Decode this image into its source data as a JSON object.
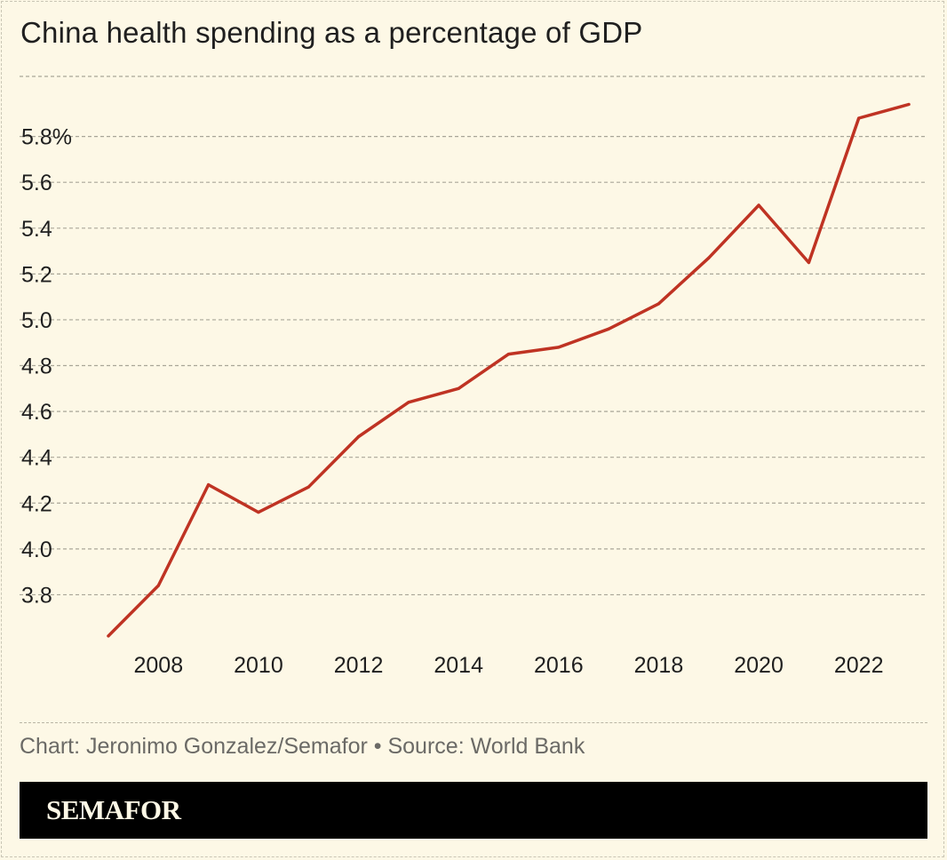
{
  "title": "China health spending as a percentage of GDP",
  "credit": "Chart: Jeronimo Gonzalez/Semafor • Source: World Bank",
  "brand": "SEMAFOR",
  "colors": {
    "line": "#bf3323",
    "background": "#fdf8e6",
    "grid": "#a9a698",
    "text": "#1f1f1f",
    "muted": "#6b6a66"
  },
  "chart_data": {
    "type": "line",
    "x": [
      2007,
      2008,
      2009,
      2010,
      2011,
      2012,
      2013,
      2014,
      2015,
      2016,
      2017,
      2018,
      2019,
      2020,
      2021,
      2022,
      2023
    ],
    "series": [
      {
        "values": [
          3.62,
          3.84,
          4.28,
          4.16,
          4.27,
          4.49,
          4.64,
          4.7,
          4.85,
          4.88,
          4.96,
          5.07,
          5.27,
          5.5,
          5.25,
          5.88,
          5.94
        ]
      }
    ],
    "yticks": [
      3.8,
      4.0,
      4.2,
      4.4,
      4.6,
      4.8,
      5.0,
      5.2,
      5.4,
      5.6,
      5.8
    ],
    "ytick_labels": [
      "3.8",
      "4.0",
      "4.2",
      "4.4",
      "4.6",
      "4.8",
      "5.0",
      "5.2",
      "5.4",
      "5.6",
      "5.8%"
    ],
    "xticks": [
      2008,
      2010,
      2012,
      2014,
      2016,
      2018,
      2020,
      2022
    ],
    "xtick_labels": [
      "2008",
      "2010",
      "2012",
      "2014",
      "2016",
      "2018",
      "2020",
      "2022"
    ],
    "ylim": [
      3.6,
      6.07
    ],
    "xlim": [
      2007,
      2023
    ],
    "grid": "horizontal dashed",
    "xlabel": "",
    "ylabel": ""
  }
}
